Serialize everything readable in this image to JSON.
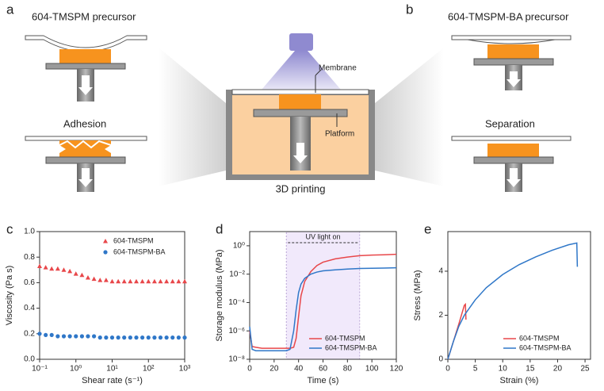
{
  "panels": [
    "a",
    "b",
    "c",
    "d",
    "e"
  ],
  "schematic": {
    "left_title": "604-TMSPM precursor",
    "left_state": "Adhesion",
    "membrane": "Membrane",
    "platform": "Platform",
    "center_caption": "3D printing",
    "right_title": "604-TMSPM-BA precursor",
    "right_state": "Separation"
  },
  "chart_data": [
    {
      "type": "scatter",
      "xlabel": "Shear rate (s⁻¹)",
      "ylabel": "Viscosity (Pa s)",
      "xscale": "log",
      "legend": "upper right",
      "x": [
        0.1,
        0.147,
        0.215,
        0.316,
        0.464,
        0.681,
        1,
        1.47,
        2.15,
        3.16,
        4.64,
        6.81,
        10,
        14.7,
        21.5,
        31.6,
        46.4,
        68.1,
        100,
        147,
        215,
        316,
        464,
        681,
        1000
      ],
      "series": [
        {
          "name": "604-TMSPM",
          "color": "#e8474a",
          "marker": "triangle",
          "values": [
            0.73,
            0.72,
            0.71,
            0.71,
            0.7,
            0.69,
            0.67,
            0.66,
            0.64,
            0.63,
            0.62,
            0.62,
            0.61,
            0.61,
            0.61,
            0.61,
            0.61,
            0.61,
            0.61,
            0.61,
            0.61,
            0.61,
            0.61,
            0.61,
            0.61
          ]
        },
        {
          "name": "604-TMSPM-BA",
          "color": "#2f77c8",
          "marker": "circle",
          "values": [
            0.2,
            0.19,
            0.19,
            0.18,
            0.18,
            0.18,
            0.18,
            0.18,
            0.18,
            0.18,
            0.17,
            0.17,
            0.17,
            0.17,
            0.17,
            0.17,
            0.17,
            0.17,
            0.17,
            0.17,
            0.17,
            0.17,
            0.17,
            0.17,
            0.17
          ]
        }
      ],
      "xlim": [
        0.1,
        1000
      ],
      "xticks": [
        {
          "value": 0.1,
          "label": "10⁻¹"
        },
        {
          "value": 1,
          "label": "10⁰"
        },
        {
          "value": 10,
          "label": "10¹"
        },
        {
          "value": 100,
          "label": "10²"
        },
        {
          "value": 1000,
          "label": "10³"
        }
      ],
      "ylim": [
        0,
        1
      ],
      "yticks": [
        {
          "value": 0,
          "label": "0.0"
        },
        0.2,
        0.4,
        0.6,
        0.8,
        {
          "value": 1,
          "label": "1.0"
        }
      ]
    },
    {
      "type": "line",
      "xlabel": "Time (s)",
      "ylabel": "Storage modulus (MPa)",
      "yscale": "log",
      "legend": "lower right",
      "annotation": "UV light on",
      "span": [
        30,
        90
      ],
      "x": [
        0,
        2,
        5,
        10,
        20,
        30,
        33,
        36,
        38,
        40,
        42,
        45,
        50,
        55,
        60,
        70,
        80,
        90,
        100,
        110,
        120
      ],
      "series": [
        {
          "name": "604-TMSPM",
          "color": "#e8474a",
          "values": [
            1e-06,
            8e-08,
            7e-08,
            6e-08,
            6e-08,
            6e-08,
            6e-08,
            7e-08,
            3e-07,
            1e-05,
            0.0003,
            0.003,
            0.015,
            0.04,
            0.07,
            0.12,
            0.16,
            0.2,
            0.22,
            0.23,
            0.25
          ]
        },
        {
          "name": "604-TMSPM-BA",
          "color": "#2f77c8",
          "values": [
            2e-06,
            5e-08,
            4e-08,
            4e-08,
            4e-08,
            4e-08,
            5e-08,
            1e-06,
            3e-05,
            0.0005,
            0.002,
            0.005,
            0.01,
            0.014,
            0.017,
            0.02,
            0.023,
            0.025,
            0.026,
            0.027,
            0.028
          ]
        }
      ],
      "xlim": [
        0,
        120
      ],
      "xticks": [
        0,
        20,
        40,
        60,
        80,
        100,
        120
      ],
      "ylim": [
        1e-08,
        10
      ],
      "yticks": [
        {
          "value": 1e-08,
          "label": "10⁻⁸"
        },
        {
          "value": 1e-06,
          "label": "10⁻⁶"
        },
        {
          "value": 0.0001,
          "label": "10⁻⁴"
        },
        {
          "value": 0.01,
          "label": "10⁻²"
        },
        {
          "value": 1,
          "label": "10⁰"
        }
      ]
    },
    {
      "type": "line",
      "xlabel": "Strain (%)",
      "ylabel": "Stress (MPa)",
      "legend": "lower right",
      "series": [
        {
          "name": "604-TMSPM",
          "color": "#e8474a",
          "x": [
            0,
            1,
            2,
            3,
            3.2,
            3.3
          ],
          "values": [
            0,
            0.8,
            1.6,
            2.45,
            2.5,
            1.8
          ]
        },
        {
          "name": "604-TMSPM-BA",
          "color": "#2f77c8",
          "x": [
            0,
            1,
            2,
            3,
            5,
            7,
            10,
            13,
            16,
            19,
            22,
            23.5,
            23.6
          ],
          "values": [
            0,
            0.8,
            1.5,
            2,
            2.7,
            3.25,
            3.85,
            4.3,
            4.65,
            4.95,
            5.2,
            5.28,
            4.2
          ]
        }
      ],
      "xlim": [
        0,
        26
      ],
      "xticks": [
        0,
        5,
        10,
        15,
        20,
        25
      ],
      "ylim": [
        0,
        5.8
      ],
      "yticks": [
        0,
        2,
        4
      ]
    }
  ]
}
